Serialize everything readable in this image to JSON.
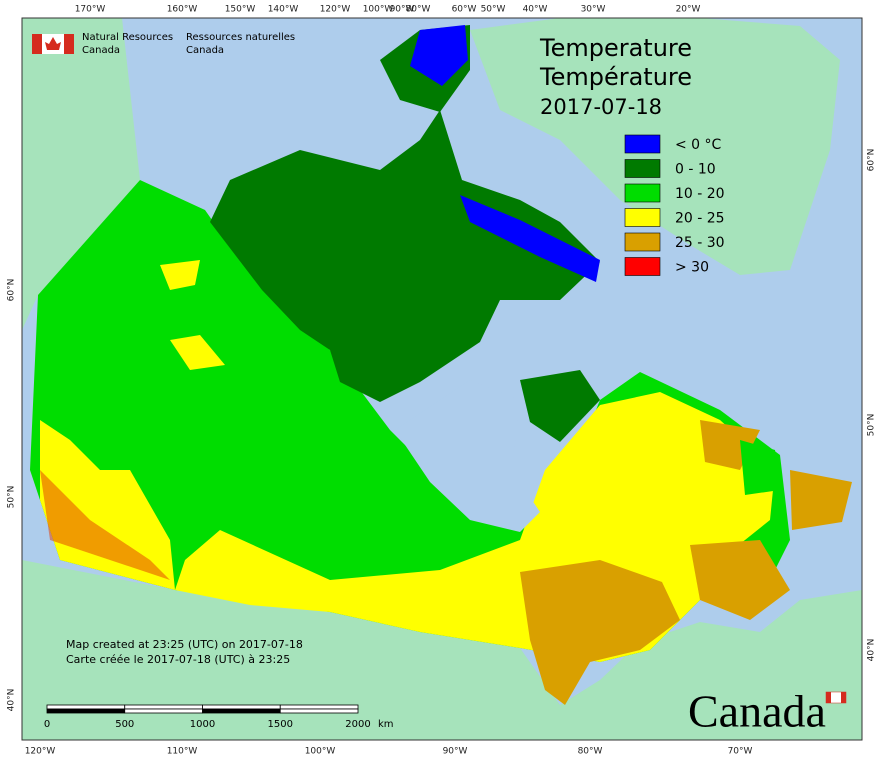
{
  "header": {
    "department_en": [
      "Natural Resources",
      "Canada"
    ],
    "department_fr": [
      "Ressources naturelles",
      "Canada"
    ]
  },
  "title": {
    "lines": [
      "Temperature",
      "Température"
    ],
    "date": "2017-07-18"
  },
  "legend": [
    {
      "label": "< 0 °C",
      "color": "#0000ff"
    },
    {
      "label": "0 - 10",
      "color": "#007a00"
    },
    {
      "label": "10 - 20",
      "color": "#00dd00"
    },
    {
      "label": "20 - 25",
      "color": "#ffff00"
    },
    {
      "label": "25 - 30",
      "color": "#d9a000"
    },
    {
      "label": "> 30",
      "color": "#ff0000"
    }
  ],
  "graticule": {
    "top": [
      "170°W",
      "160°W",
      "150°W",
      "140°W",
      "120°W",
      "100°W",
      "90°W",
      "80°W",
      "60°W",
      "50°W",
      "40°W",
      "30°W",
      "20°W"
    ],
    "bottom": [
      "120°W",
      "110°W",
      "100°W",
      "90°W",
      "80°W",
      "70°W"
    ],
    "left": [
      "60°N",
      "50°N",
      "40°N"
    ],
    "right": [
      "60°N",
      "50°N",
      "40°N"
    ]
  },
  "credits": [
    "Map created at 23:25 (UTC) on 2017-07-18",
    "Carte créée le 2017-07-18 (UTC) à 23:25"
  ],
  "scale": {
    "ticks": [
      0,
      500,
      1000,
      1500,
      2000
    ],
    "unit": "km"
  },
  "wordmark": "Canada"
}
